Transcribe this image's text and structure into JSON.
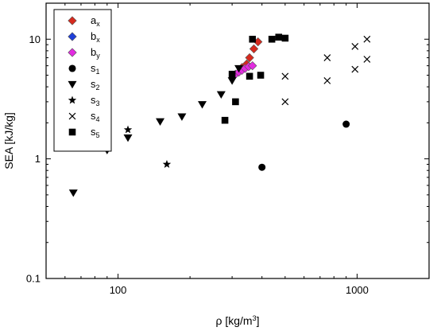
{
  "chart_data": {
    "type": "scatter",
    "x_scale": "log",
    "y_scale": "log",
    "xlim": [
      50,
      2000
    ],
    "ylim": [
      0.1,
      20
    ],
    "xlabel": {
      "prefix": "ρ [kg/m",
      "sup": "3",
      "suffix": "]"
    },
    "ylabel": "SEA [kJ/kg]",
    "x_ticks": [
      {
        "value": 100,
        "label": "100"
      },
      {
        "value": 1000,
        "label": "1000"
      }
    ],
    "y_ticks": [
      {
        "value": 0.1,
        "label": "0.1"
      },
      {
        "value": 1,
        "label": "1"
      },
      {
        "value": 10,
        "label": "10"
      }
    ],
    "grid": false,
    "legend_position": "top-left",
    "series": [
      {
        "id": "ax",
        "name": "a",
        "sub": "x",
        "marker": "diamond",
        "color": "#d62a1e",
        "points": [
          [
            330,
            5.8
          ],
          [
            345,
            6.2
          ],
          [
            355,
            7.0
          ],
          [
            370,
            8.3
          ],
          [
            385,
            9.5
          ]
        ]
      },
      {
        "id": "bx",
        "name": "b",
        "sub": "x",
        "marker": "diamond",
        "color": "#1f3fd8",
        "points": []
      },
      {
        "id": "by",
        "name": "b",
        "sub": "y",
        "marker": "diamond",
        "color": "#e22be0",
        "points": [
          [
            310,
            5.1
          ],
          [
            320,
            5.3
          ],
          [
            330,
            5.5
          ],
          [
            340,
            5.7
          ],
          [
            352,
            5.9
          ],
          [
            365,
            6.0
          ]
        ]
      },
      {
        "id": "s1",
        "name": "s",
        "sub": "1",
        "marker": "circle",
        "color": "#000000",
        "points": [
          [
            400,
            0.85
          ],
          [
            900,
            1.95
          ]
        ]
      },
      {
        "id": "s2",
        "name": "s",
        "sub": "2",
        "marker": "triangle-down",
        "color": "#000000",
        "points": [
          [
            65,
            0.52
          ],
          [
            90,
            1.18
          ],
          [
            110,
            1.5
          ],
          [
            150,
            2.05
          ],
          [
            185,
            2.25
          ],
          [
            225,
            2.85
          ],
          [
            270,
            3.45
          ],
          [
            300,
            4.5
          ],
          [
            320,
            5.7
          ]
        ]
      },
      {
        "id": "s3",
        "name": "s",
        "sub": "3",
        "marker": "star",
        "color": "#000000",
        "points": [
          [
            110,
            1.75
          ],
          [
            160,
            0.9
          ]
        ]
      },
      {
        "id": "s4",
        "name": "s",
        "sub": "4",
        "marker": "cross",
        "color": "#000000",
        "points": [
          [
            500,
            3.0
          ],
          [
            500,
            4.9
          ],
          [
            750,
            4.5
          ],
          [
            750,
            7.0
          ],
          [
            980,
            5.6
          ],
          [
            980,
            8.7
          ],
          [
            1100,
            6.8
          ],
          [
            1100,
            10.0
          ]
        ]
      },
      {
        "id": "s5",
        "name": "s",
        "sub": "5",
        "marker": "square",
        "color": "#000000",
        "points": [
          [
            280,
            2.1
          ],
          [
            310,
            3.0
          ],
          [
            300,
            5.1
          ],
          [
            355,
            4.9
          ],
          [
            395,
            5.0
          ],
          [
            365,
            10.0
          ],
          [
            440,
            10.0
          ],
          [
            470,
            10.4
          ],
          [
            500,
            10.2
          ]
        ]
      }
    ]
  }
}
